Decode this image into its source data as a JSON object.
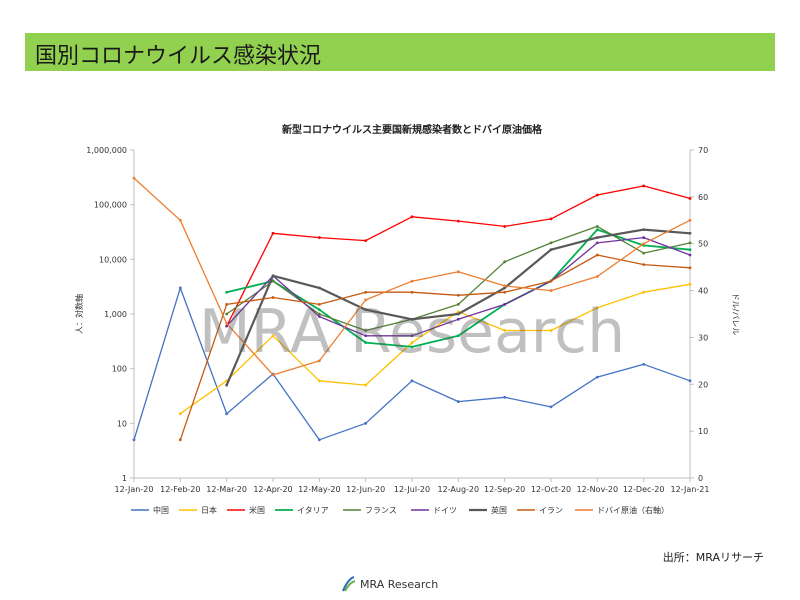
{
  "header": {
    "title": "国別コロナウイルス感染状況"
  },
  "source_note": "出所：MRAリサーチ",
  "logo": {
    "text": "MRA Research"
  },
  "watermark": "MRA Research",
  "colors": {
    "header_bg": "#92d050",
    "axis": "#bfbfbf",
    "text": "#333333"
  },
  "chart_data": {
    "type": "line",
    "title": "新型コロナウイルス主要国新規感染者数とドバイ原油価格",
    "ylabel": "人：対数軸",
    "y2label": "ドル/バレル",
    "yscale": "log",
    "ylim": [
      1,
      1000000
    ],
    "y2lim": [
      0,
      70
    ],
    "yticks": [
      "1",
      "10",
      "100",
      "1,000",
      "10,000",
      "100,000",
      "1,000,000"
    ],
    "y2ticks": [
      "0",
      "10",
      "20",
      "30",
      "40",
      "50",
      "60",
      "70"
    ],
    "x": [
      "12-Jan-20",
      "12-Feb-20",
      "12-Mar-20",
      "12-Apr-20",
      "12-May-20",
      "12-Jun-20",
      "12-Jul-20",
      "12-Aug-20",
      "12-Sep-20",
      "12-Oct-20",
      "12-Nov-20",
      "12-Dec-20",
      "12-Jan-21"
    ],
    "series": [
      {
        "name": "中国",
        "color": "#4472c4",
        "width": 1.3,
        "values": [
          5,
          3000,
          15,
          80,
          5,
          10,
          60,
          25,
          30,
          20,
          70,
          120,
          60
        ]
      },
      {
        "name": "日本",
        "color": "#ffc000",
        "width": 1.3,
        "values": [
          null,
          15,
          60,
          400,
          60,
          50,
          300,
          1100,
          500,
          500,
          1300,
          2500,
          3500
        ]
      },
      {
        "name": "米国",
        "color": "#ff0000",
        "width": 1.3,
        "values": [
          null,
          null,
          600,
          30000,
          25000,
          22000,
          60000,
          50000,
          40000,
          55000,
          150000,
          220000,
          130000
        ]
      },
      {
        "name": "イタリア",
        "color": "#00b050",
        "width": 1.8,
        "values": [
          null,
          null,
          2500,
          4000,
          1200,
          300,
          250,
          400,
          1500,
          4000,
          35000,
          18000,
          15000
        ]
      },
      {
        "name": "フランス",
        "color": "#548235",
        "width": 1.3,
        "values": [
          null,
          null,
          1000,
          4000,
          1000,
          500,
          800,
          1500,
          9000,
          20000,
          40000,
          13000,
          20000
        ]
      },
      {
        "name": "ドイツ",
        "color": "#7030a0",
        "width": 1.3,
        "values": [
          null,
          null,
          600,
          5000,
          900,
          400,
          400,
          800,
          1500,
          4000,
          20000,
          25000,
          12000
        ]
      },
      {
        "name": "英国",
        "color": "#595959",
        "width": 2.2,
        "values": [
          null,
          null,
          50,
          5000,
          3000,
          1200,
          800,
          1000,
          3000,
          15000,
          25000,
          35000,
          30000
        ]
      },
      {
        "name": "イラン",
        "color": "#c55a11",
        "width": 1.3,
        "values": [
          null,
          5,
          1500,
          2000,
          1500,
          2500,
          2500,
          2200,
          2500,
          4000,
          12000,
          8000,
          7000
        ]
      },
      {
        "name": "ドバイ原油（右軸）",
        "color": "#ed7d31",
        "width": 1.3,
        "axis": "right",
        "values": [
          64,
          55,
          33,
          22,
          25,
          38,
          42,
          44,
          41,
          40,
          43,
          50,
          55
        ]
      }
    ],
    "legend_position": "bottom",
    "grid": false
  }
}
